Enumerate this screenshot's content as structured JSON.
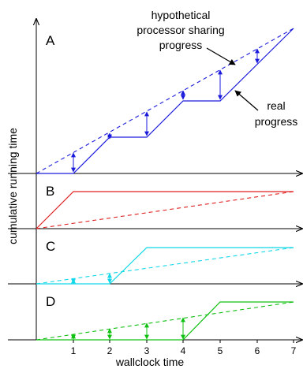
{
  "figure": {
    "y_axis_label": "cumulative running time",
    "x_axis_label": "wallclock time",
    "x_ticks": [
      "1",
      "2",
      "3",
      "4",
      "5",
      "6",
      "7"
    ]
  },
  "panels": [
    {
      "label": "A",
      "color": "#1a1adc",
      "hypothetical_label": [
        "hypothetical",
        "processor sharing",
        "progress"
      ],
      "real_label": [
        "real",
        "progress"
      ]
    },
    {
      "label": "B",
      "color": "#e02020"
    },
    {
      "label": "C",
      "color": "#10d8e8"
    },
    {
      "label": "D",
      "color": "#10c010"
    }
  ]
}
